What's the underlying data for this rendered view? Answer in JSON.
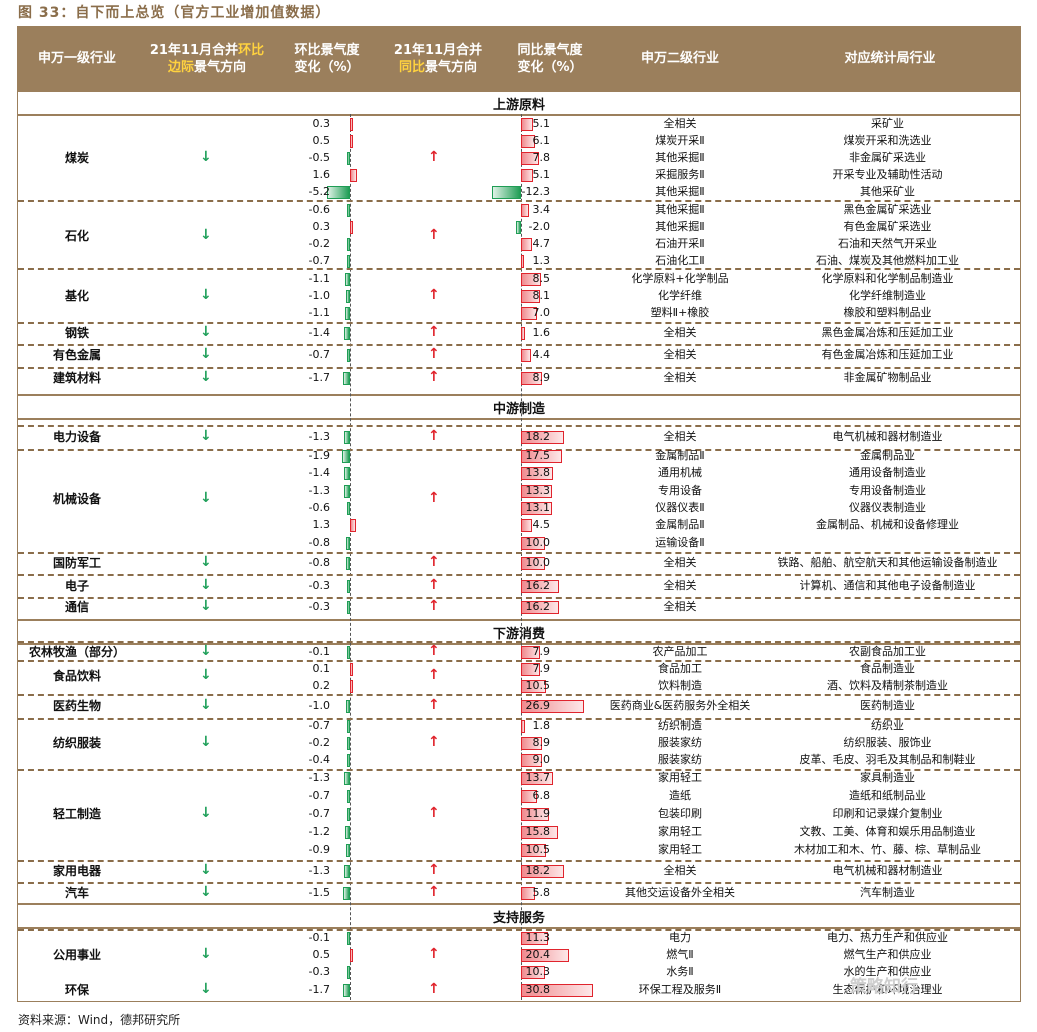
{
  "figure_title": "图 33：自下而上总览（官方工业增加值数据）",
  "header": {
    "col1": "申万一级行业",
    "col2a": "21年11月合并",
    "col2b": "环比",
    "col2c": "边际",
    "col2d": "景气方向",
    "col3": "环比景气度\n变化（%）",
    "col4a": "21年11月合并",
    "col4b": "同比",
    "col4c": "景气方向",
    "col5": "同比景气度\n变化（%）",
    "col6": "申万二级行业",
    "col7": "对应统计局行业"
  },
  "sections": {
    "upstream": "上游原料",
    "midstream": "中游制造",
    "downstream": "下游消费",
    "support": "支持服务"
  },
  "groups": {
    "coal": "煤炭",
    "petro": "石化",
    "chem": "基化",
    "steel": "钢铁",
    "nonferrous": "有色金属",
    "building": "建筑材料",
    "power": "电力设备",
    "machinery": "机械设备",
    "defense": "国防军工",
    "electronics": "电子",
    "telecom": "通信",
    "agri": "农林牧渔（部分）",
    "food": "食品饮料",
    "pharma": "医药生物",
    "textile": "纺织服装",
    "light": "轻工制造",
    "appliance": "家用电器",
    "auto": "汽车",
    "utility": "公用事业",
    "env": "环保"
  },
  "arrows": {
    "down": "↓",
    "up": "↑"
  },
  "rows": [
    {
      "mom": "0.3",
      "yoy": "5.1",
      "sw2": "全相关",
      "nbs": "采矿业"
    },
    {
      "mom": "0.5",
      "yoy": "6.1",
      "sw2": "煤炭开采Ⅱ",
      "nbs": "煤炭开采和洗选业"
    },
    {
      "mom": "-0.5",
      "yoy": "7.8",
      "sw2": "其他采掘Ⅱ",
      "nbs": "非金属矿采选业"
    },
    {
      "mom": "1.6",
      "yoy": "5.1",
      "sw2": "采掘服务Ⅱ",
      "nbs": "开采专业及辅助性活动"
    },
    {
      "mom": "-5.2",
      "yoy": "-12.3",
      "sw2": "其他采掘Ⅱ",
      "nbs": "其他采矿业"
    },
    {
      "mom": "-0.6",
      "yoy": "3.4",
      "sw2": "其他采掘Ⅱ",
      "nbs": "黑色金属矿采选业"
    },
    {
      "mom": "0.3",
      "yoy": "-2.0",
      "sw2": "其他采掘Ⅱ",
      "nbs": "有色金属矿采选业"
    },
    {
      "mom": "-0.2",
      "yoy": "4.7",
      "sw2": "石油开采Ⅱ",
      "nbs": "石油和天然气开采业"
    },
    {
      "mom": "-0.7",
      "yoy": "1.3",
      "sw2": "石油化工Ⅱ",
      "nbs": "石油、煤炭及其他燃料加工业"
    },
    {
      "mom": "-1.1",
      "yoy": "8.5",
      "sw2": "化学原料+化学制品",
      "nbs": "化学原料和化学制品制造业"
    },
    {
      "mom": "-1.0",
      "yoy": "8.1",
      "sw2": "化学纤维",
      "nbs": "化学纤维制造业"
    },
    {
      "mom": "-1.1",
      "yoy": "7.0",
      "sw2": "塑料Ⅱ+橡胶",
      "nbs": "橡胶和塑料制品业"
    },
    {
      "mom": "-1.4",
      "yoy": "1.6",
      "sw2": "全相关",
      "nbs": "黑色金属冶炼和压延加工业"
    },
    {
      "mom": "-0.7",
      "yoy": "4.4",
      "sw2": "全相关",
      "nbs": "有色金属冶炼和压延加工业"
    },
    {
      "mom": "-1.7",
      "yoy": "8.9",
      "sw2": "全相关",
      "nbs": "非金属矿物制品业"
    },
    {
      "mom": "-1.3",
      "yoy": "18.2",
      "sw2": "全相关",
      "nbs": "电气机械和器材制造业"
    },
    {
      "mom": "-1.9",
      "yoy": "17.5",
      "sw2": "金属制品Ⅱ",
      "nbs": "金属制品业"
    },
    {
      "mom": "-1.4",
      "yoy": "13.8",
      "sw2": "通用机械",
      "nbs": "通用设备制造业"
    },
    {
      "mom": "-1.3",
      "yoy": "13.3",
      "sw2": "专用设备",
      "nbs": "专用设备制造业"
    },
    {
      "mom": "-0.6",
      "yoy": "13.1",
      "sw2": "仪器仪表Ⅱ",
      "nbs": "仪器仪表制造业"
    },
    {
      "mom": "1.3",
      "yoy": "4.5",
      "sw2": "金属制品Ⅱ",
      "nbs": "金属制品、机械和设备修理业"
    },
    {
      "mom": "-0.8",
      "yoy": "10.0",
      "sw2": "运输设备Ⅱ",
      "nbs": ""
    },
    {
      "mom": "-0.8",
      "yoy": "10.0",
      "sw2": "全相关",
      "nbs": "铁路、船舶、航空航天和其他运输设备制造业"
    },
    {
      "mom": "-0.3",
      "yoy": "16.2",
      "sw2": "全相关",
      "nbs": "计算机、通信和其他电子设备制造业"
    },
    {
      "mom": "-0.3",
      "yoy": "16.2",
      "sw2": "全相关",
      "nbs": ""
    },
    {
      "mom": "-0.1",
      "yoy": "7.9",
      "sw2": "农产品加工",
      "nbs": "农副食品加工业"
    },
    {
      "mom": "0.1",
      "yoy": "7.9",
      "sw2": "食品加工",
      "nbs": "食品制造业"
    },
    {
      "mom": "0.2",
      "yoy": "10.5",
      "sw2": "饮料制造",
      "nbs": "酒、饮料及精制茶制造业"
    },
    {
      "mom": "-1.0",
      "yoy": "26.9",
      "sw2": "医药商业&医药服务外全相关",
      "nbs": "医药制造业"
    },
    {
      "mom": "-0.7",
      "yoy": "1.8",
      "sw2": "纺织制造",
      "nbs": "纺织业"
    },
    {
      "mom": "-0.2",
      "yoy": "8.9",
      "sw2": "服装家纺",
      "nbs": "纺织服装、服饰业"
    },
    {
      "mom": "-0.4",
      "yoy": "9.0",
      "sw2": "服装家纺",
      "nbs": "皮革、毛皮、羽毛及其制品和制鞋业"
    },
    {
      "mom": "-1.3",
      "yoy": "13.7",
      "sw2": "家用轻工",
      "nbs": "家具制造业"
    },
    {
      "mom": "-0.7",
      "yoy": "6.8",
      "sw2": "造纸",
      "nbs": "造纸和纸制品业"
    },
    {
      "mom": "-0.7",
      "yoy": "11.9",
      "sw2": "包装印刷",
      "nbs": "印刷和记录媒介复制业"
    },
    {
      "mom": "-1.2",
      "yoy": "15.8",
      "sw2": "家用轻工",
      "nbs": "文教、工美、体育和娱乐用品制造业"
    },
    {
      "mom": "-0.9",
      "yoy": "10.5",
      "sw2": "家用轻工",
      "nbs": "木材加工和木、竹、藤、棕、草制品业"
    },
    {
      "mom": "-1.3",
      "yoy": "18.2",
      "sw2": "全相关",
      "nbs": "电气机械和器材制造业"
    },
    {
      "mom": "-1.5",
      "yoy": "5.8",
      "sw2": "其他交运设备外全相关",
      "nbs": "汽车制造业"
    },
    {
      "mom": "-0.1",
      "yoy": "11.3",
      "sw2": "电力",
      "nbs": "电力、热力生产和供应业"
    },
    {
      "mom": "0.5",
      "yoy": "20.4",
      "sw2": "燃气Ⅱ",
      "nbs": "燃气生产和供应业"
    },
    {
      "mom": "-0.3",
      "yoy": "10.3",
      "sw2": "水务Ⅱ",
      "nbs": "水的生产和供应业"
    },
    {
      "mom": "-1.7",
      "yoy": "30.8",
      "sw2": "环保工程及服务Ⅱ",
      "nbs": "生态保护和环境治理业"
    }
  ],
  "source": "资料来源：Wind，德邦研究所",
  "watermark": "策略知行"
}
